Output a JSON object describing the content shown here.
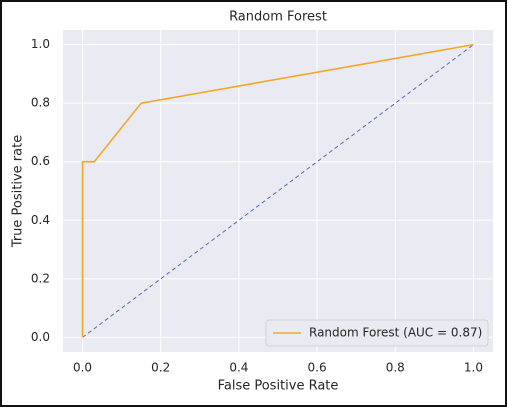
{
  "chart_data": {
    "type": "line",
    "title": "Random Forest",
    "xlabel": "False Positive Rate",
    "ylabel": "True Positive rate",
    "series": [
      {
        "name": "Random Forest (AUC = 0.87)",
        "color": "#f5a623",
        "x": [
          0,
          0,
          0.03,
          0.15,
          1
        ],
        "values": [
          0,
          0.6,
          0.6,
          0.8,
          1
        ]
      }
    ],
    "reference": {
      "x": [
        0,
        1
      ],
      "y": [
        0,
        1
      ],
      "color": "#4c72b0",
      "dashed": true
    },
    "xlim": [
      -0.05,
      1.05
    ],
    "ylim": [
      -0.05,
      1.05
    ],
    "xticks": [
      {
        "value": 0,
        "label": "0.0"
      },
      0.2,
      0.4,
      0.6,
      0.8,
      {
        "value": 1,
        "label": "1.0"
      }
    ],
    "yticks": [
      {
        "value": 0,
        "label": "0.0"
      },
      0.2,
      0.4,
      0.6,
      0.8,
      {
        "value": 1,
        "label": "1.0"
      }
    ],
    "grid": true,
    "legend": "lower right",
    "background": "#eaeaf2"
  }
}
